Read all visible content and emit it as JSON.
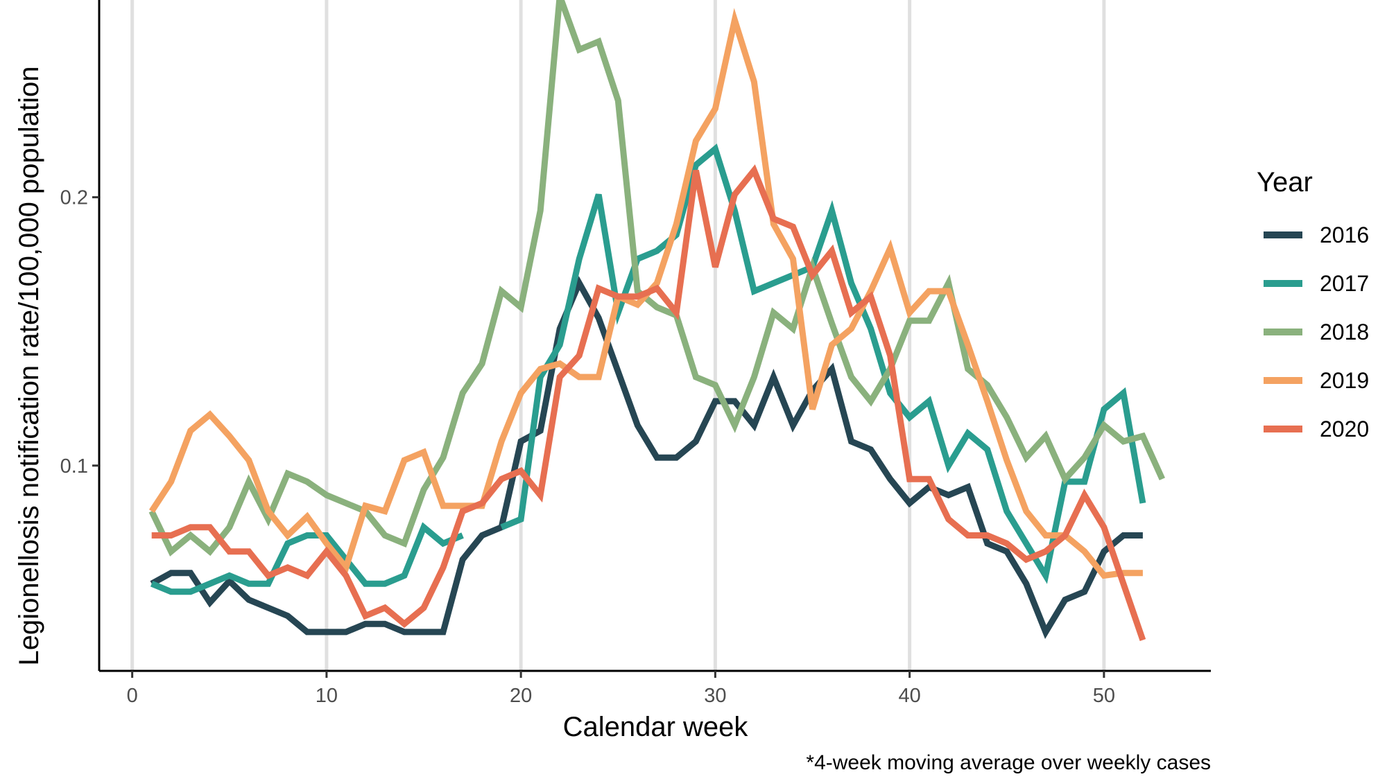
{
  "chart_data": {
    "type": "line",
    "title": "",
    "xlabel": "Calendar week",
    "ylabel": "Legionellosis notification rate/100,000 population",
    "caption": "*4-week moving average over weekly cases",
    "xlim": [
      -1.7,
      55.5
    ],
    "ylim": [
      0.0235,
      0.2735
    ],
    "x_ticks": [
      0,
      10,
      20,
      30,
      40,
      50
    ],
    "x_tick_labels": [
      "0",
      "10",
      "20",
      "30",
      "40",
      "50"
    ],
    "y_ticks": [
      0.1,
      0.2
    ],
    "y_tick_labels": [
      "0.1",
      "0.2"
    ],
    "vertical_grid": true,
    "grid_color": "#e0e0e0",
    "legend": {
      "title": "Year",
      "position": "right"
    },
    "series": [
      {
        "name": "2016",
        "color": "#264653",
        "x": [
          1,
          2,
          3,
          4,
          5,
          6,
          7,
          8,
          9,
          10,
          11,
          12,
          13,
          14,
          15,
          16,
          17,
          18,
          19,
          20,
          21,
          22,
          23,
          24,
          25,
          26,
          27,
          28,
          29,
          30,
          31,
          32,
          33,
          34,
          35,
          36,
          37,
          38,
          39,
          40,
          41,
          42,
          43,
          44,
          45,
          46,
          47,
          48,
          49,
          50,
          51,
          52
        ],
        "values": [
          0.056,
          0.06,
          0.06,
          0.049,
          0.057,
          0.05,
          0.047,
          0.044,
          0.038,
          0.038,
          0.038,
          0.041,
          0.041,
          0.038,
          0.038,
          0.038,
          0.065,
          0.074,
          0.077,
          0.109,
          0.113,
          0.151,
          0.168,
          0.155,
          0.135,
          0.115,
          0.103,
          0.103,
          0.109,
          0.124,
          0.124,
          0.115,
          0.133,
          0.115,
          0.128,
          0.136,
          0.109,
          0.106,
          0.095,
          0.086,
          0.092,
          0.089,
          0.092,
          0.071,
          0.068,
          0.056,
          0.038,
          0.05,
          0.053,
          0.068,
          0.074,
          0.074
        ]
      },
      {
        "name": "2017",
        "color": "#2a9d8f",
        "x": [
          1,
          2,
          3,
          4,
          5,
          6,
          7,
          8,
          9,
          10,
          11,
          12,
          13,
          14,
          15,
          16,
          17,
          18,
          19,
          20,
          21,
          22,
          23,
          24,
          25,
          26,
          27,
          28,
          29,
          30,
          31,
          32,
          33,
          34,
          35,
          36,
          37,
          38,
          39,
          40,
          41,
          42,
          43,
          44,
          45,
          46,
          47,
          48,
          49,
          50,
          51,
          52
        ],
        "values": [
          0.056,
          0.053,
          0.053,
          0.056,
          0.059,
          0.056,
          0.056,
          0.071,
          0.074,
          0.074,
          0.065,
          0.056,
          0.056,
          0.059,
          0.077,
          0.071,
          0.074,
          null,
          0.077,
          0.08,
          0.133,
          0.145,
          0.177,
          0.201,
          0.157,
          0.177,
          0.18,
          0.186,
          0.212,
          0.218,
          0.195,
          0.165,
          0.168,
          0.171,
          0.174,
          0.195,
          0.168,
          0.151,
          0.127,
          0.118,
          0.124,
          0.1,
          0.112,
          0.106,
          0.083,
          0.071,
          0.059,
          0.094,
          0.094,
          0.121,
          0.127,
          0.086
        ]
      },
      {
        "name": "2018",
        "color": "#8ab17d",
        "x": [
          1,
          2,
          3,
          4,
          5,
          6,
          7,
          8,
          9,
          10,
          11,
          12,
          13,
          14,
          15,
          16,
          17,
          18,
          19,
          20,
          21,
          22,
          23,
          24,
          25,
          26,
          27,
          28,
          29,
          30,
          31,
          32,
          33,
          34,
          35,
          36,
          37,
          38,
          39,
          40,
          41,
          42,
          43,
          44,
          45,
          46,
          47,
          48,
          49,
          50,
          51,
          52,
          53
        ],
        "values": [
          0.083,
          0.068,
          0.074,
          0.068,
          0.077,
          0.094,
          0.08,
          0.097,
          0.094,
          0.089,
          0.086,
          0.083,
          0.074,
          0.071,
          0.091,
          0.103,
          0.127,
          0.138,
          0.165,
          0.159,
          0.195,
          0.275,
          0.255,
          0.258,
          0.236,
          0.165,
          0.159,
          0.156,
          0.133,
          0.13,
          0.115,
          0.133,
          0.157,
          0.151,
          0.174,
          0.153,
          0.133,
          0.124,
          0.136,
          0.154,
          0.154,
          0.168,
          0.136,
          0.13,
          0.118,
          0.103,
          0.111,
          0.095,
          0.103,
          0.115,
          0.109,
          0.111,
          0.095
        ]
      },
      {
        "name": "2019",
        "color": "#f4a261",
        "x": [
          1,
          2,
          3,
          4,
          5,
          6,
          7,
          8,
          9,
          10,
          11,
          12,
          13,
          14,
          15,
          16,
          17,
          18,
          19,
          20,
          21,
          22,
          23,
          24,
          25,
          26,
          27,
          28,
          29,
          30,
          31,
          32,
          33,
          34,
          35,
          36,
          37,
          38,
          39,
          40,
          41,
          42,
          43,
          44,
          45,
          46,
          47,
          48,
          49,
          50,
          51,
          52
        ],
        "values": [
          0.083,
          0.094,
          0.113,
          0.119,
          0.111,
          0.102,
          0.083,
          0.074,
          0.081,
          0.071,
          0.062,
          0.085,
          0.083,
          0.102,
          0.105,
          0.085,
          0.085,
          0.085,
          0.109,
          0.127,
          0.136,
          0.138,
          0.133,
          0.133,
          0.163,
          0.16,
          0.168,
          0.19,
          0.221,
          0.233,
          0.266,
          0.243,
          0.19,
          0.177,
          0.121,
          0.145,
          0.151,
          0.165,
          0.181,
          0.157,
          0.165,
          0.165,
          0.145,
          0.124,
          0.102,
          0.083,
          0.074,
          0.074,
          0.068,
          0.059,
          0.06,
          0.06
        ]
      },
      {
        "name": "2020",
        "color": "#e76f51",
        "x": [
          1,
          2,
          3,
          4,
          5,
          6,
          7,
          8,
          9,
          10,
          11,
          12,
          13,
          14,
          15,
          16,
          17,
          18,
          19,
          20,
          21,
          22,
          23,
          24,
          25,
          26,
          27,
          28,
          29,
          30,
          31,
          32,
          33,
          34,
          35,
          36,
          37,
          38,
          39,
          40,
          41,
          42,
          43,
          44,
          45,
          46,
          47,
          48,
          49,
          50,
          51,
          52
        ],
        "values": [
          0.074,
          0.074,
          0.077,
          0.077,
          0.068,
          0.068,
          0.059,
          0.062,
          0.059,
          0.068,
          0.059,
          0.044,
          0.047,
          0.041,
          0.047,
          0.062,
          0.083,
          0.086,
          0.095,
          0.098,
          0.089,
          0.133,
          0.141,
          0.166,
          0.163,
          0.163,
          0.166,
          0.157,
          0.21,
          0.174,
          0.201,
          0.21,
          0.192,
          0.189,
          0.171,
          0.18,
          0.157,
          0.163,
          0.141,
          0.095,
          0.095,
          0.08,
          0.074,
          0.074,
          0.071,
          0.065,
          0.068,
          0.074,
          0.089,
          0.077,
          0.056,
          0.035
        ]
      }
    ]
  }
}
